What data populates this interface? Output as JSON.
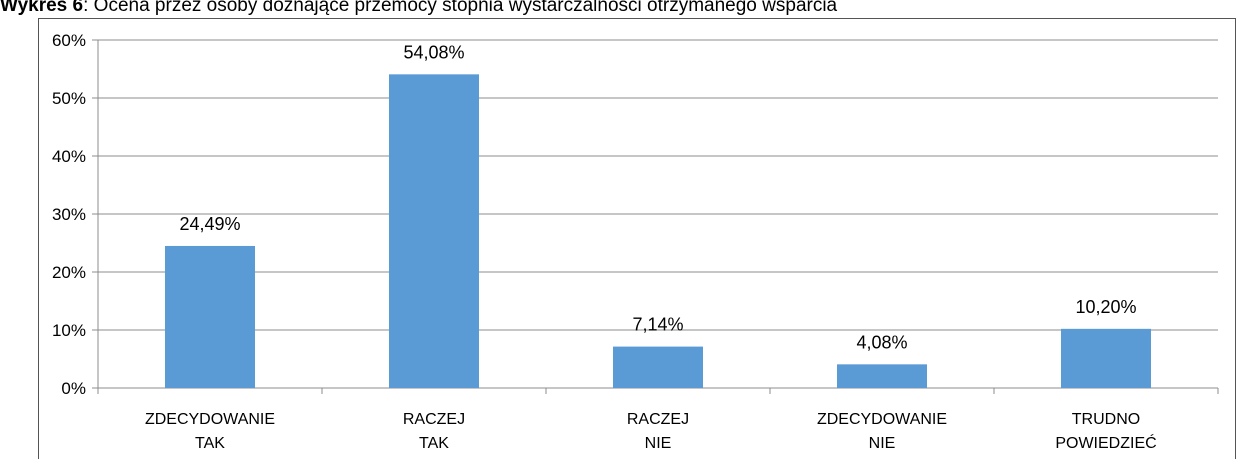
{
  "chart_data": {
    "type": "bar",
    "title_number": "Wykres 6",
    "title": ": Ocena przez osoby doznające przemocy stopnia wystarczalności otrzymanego wsparcia",
    "categories": [
      [
        "ZDECYDOWANIE",
        "TAK"
      ],
      [
        "RACZEJ",
        "TAK"
      ],
      [
        "RACZEJ",
        "NIE"
      ],
      [
        "ZDECYDOWANIE",
        "NIE"
      ],
      [
        "TRUDNO",
        "POWIEDZIEĆ"
      ]
    ],
    "values": [
      24.49,
      54.08,
      7.14,
      4.08,
      10.2
    ],
    "value_labels": [
      "24,49%",
      "54,08%",
      "7,14%",
      "4,08%",
      "10,20%"
    ],
    "color": "#5b9bd5",
    "ylim": [
      0,
      60
    ],
    "yticks": [
      {
        "value": 0,
        "label": "0%"
      },
      {
        "value": 10,
        "label": "10%"
      },
      {
        "value": 20,
        "label": "20%"
      },
      {
        "value": 30,
        "label": "30%"
      },
      {
        "value": 40,
        "label": "40%"
      },
      {
        "value": 50,
        "label": "50%"
      },
      {
        "value": 60,
        "label": "60%"
      }
    ],
    "grid": true
  }
}
